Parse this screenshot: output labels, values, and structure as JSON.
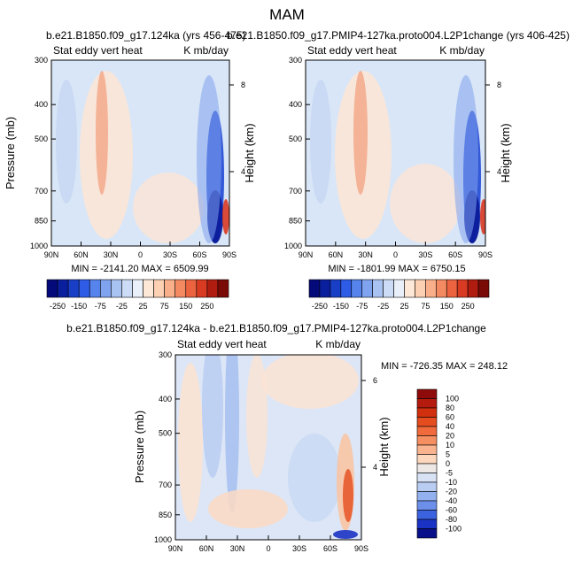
{
  "figure": {
    "title": "MAM"
  },
  "chart_data": [
    {
      "type": "heatmap",
      "title": "b.e21.B1850.f09_g17.124ka (yrs 456-475)",
      "variable": "Stat eddy vert heat",
      "units": "K mb/day",
      "xlabel": "",
      "ylabel": "Pressure (mb)",
      "y2label": "Height (km)",
      "x_ticks": [
        "90N",
        "60N",
        "30N",
        "0",
        "30S",
        "60S",
        "90S"
      ],
      "y_ticks": [
        "300",
        "400",
        "500",
        "700",
        "850",
        "1000"
      ],
      "y_tick_values": [
        300,
        400,
        500,
        700,
        850,
        1000
      ],
      "y2_ticks": [
        "8",
        "4"
      ],
      "ylim": [
        300,
        1000
      ],
      "stats": "MIN = -2141.20   MAX = 6509.99",
      "min": -2141.2,
      "max": 6509.99,
      "colorbar": {
        "labels": [
          "-250",
          "-150",
          "-75",
          "-25",
          "25",
          "75",
          "150",
          "250"
        ],
        "colors": [
          "#050a7a",
          "#0a1f9e",
          "#1a3fc7",
          "#2f5ce6",
          "#5683ec",
          "#7fa3ee",
          "#a8c2f2",
          "#ccdcf6",
          "#eaf0fa",
          "#fde8d8",
          "#fcd0b2",
          "#f9b08a",
          "#f48a62",
          "#ec6340",
          "#d83a22",
          "#b01d10",
          "#7a0a06"
        ]
      }
    },
    {
      "type": "heatmap",
      "title": "b.e21.B1850.f09_g17.PMIP4-127ka.proto004.L2P1change (yrs 406-425)",
      "variable": "Stat eddy vert heat",
      "units": "K mb/day",
      "xlabel": "",
      "ylabel": "",
      "y2label": "Height (km)",
      "x_ticks": [
        "90N",
        "60N",
        "30N",
        "0",
        "30S",
        "60S",
        "90S"
      ],
      "y_ticks": [
        "300",
        "400",
        "500",
        "700",
        "850",
        "1000"
      ],
      "y_tick_values": [
        300,
        400,
        500,
        700,
        850,
        1000
      ],
      "y2_ticks": [
        "8",
        "4"
      ],
      "ylim": [
        300,
        1000
      ],
      "stats": "MIN = -1801.99   MAX = 6750.15",
      "min": -1801.99,
      "max": 6750.15,
      "colorbar": {
        "labels": [
          "-250",
          "-150",
          "-75",
          "-25",
          "25",
          "75",
          "150",
          "250"
        ],
        "colors": [
          "#050a7a",
          "#0a1f9e",
          "#1a3fc7",
          "#2f5ce6",
          "#5683ec",
          "#7fa3ee",
          "#a8c2f2",
          "#ccdcf6",
          "#eaf0fa",
          "#fde8d8",
          "#fcd0b2",
          "#f9b08a",
          "#f48a62",
          "#ec6340",
          "#d83a22",
          "#b01d10",
          "#7a0a06"
        ]
      }
    },
    {
      "type": "heatmap",
      "title": "b.e21.B1850.f09_g17.124ka - b.e21.B1850.f09_g17.PMIP4-127ka.proto004.L2P1change",
      "variable": "Stat eddy vert heat",
      "units": "K mb/day",
      "xlabel": "",
      "ylabel": "Pressure (mb)",
      "y2label": "Height (km)",
      "x_ticks": [
        "90N",
        "60N",
        "30N",
        "0",
        "30S",
        "60S",
        "90S"
      ],
      "y_ticks": [
        "300",
        "400",
        "500",
        "700",
        "850",
        "1000"
      ],
      "y_tick_values": [
        300,
        400,
        500,
        700,
        850,
        1000
      ],
      "y2_ticks": [
        "6",
        "4"
      ],
      "ylim": [
        300,
        1000
      ],
      "stats": "MIN = -726.35   MAX = 248.12",
      "min": -726.35,
      "max": 248.12,
      "colorbar": {
        "labels": [
          "100",
          "80",
          "60",
          "40",
          "20",
          "10",
          "5",
          "0",
          "-5",
          "-10",
          "-20",
          "-40",
          "-60",
          "-80",
          "-100"
        ],
        "colors": [
          "#8f0b0b",
          "#b51a0e",
          "#d1300f",
          "#e54c1e",
          "#f06a3c",
          "#f58f62",
          "#f9b38e",
          "#fcd6bd",
          "#ede8e6",
          "#d7e2f5",
          "#b9cdf2",
          "#93b1ee",
          "#6c90ea",
          "#3c63df",
          "#1b33c4",
          "#09108a"
        ]
      }
    }
  ]
}
